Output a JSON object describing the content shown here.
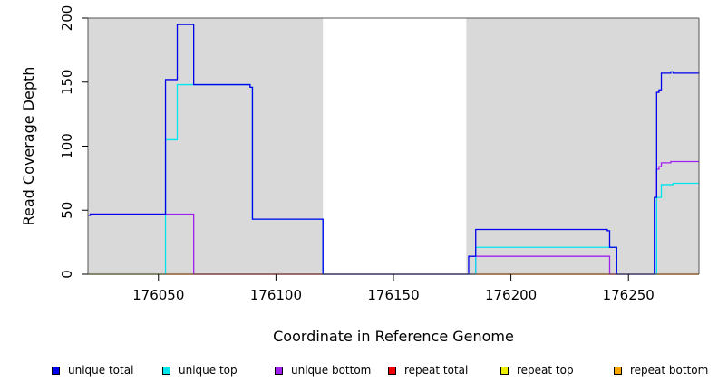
{
  "chart_data": {
    "type": "line",
    "title": "",
    "xlabel": "Coordinate in Reference Genome",
    "ylabel": "Read Coverage Depth",
    "xlim": [
      176020,
      176280
    ],
    "ylim": [
      0,
      200
    ],
    "x_ticks": [
      176050,
      176100,
      176150,
      176200,
      176250
    ],
    "y_ticks": [
      0,
      50,
      100,
      150,
      200
    ],
    "shaded_regions": [
      {
        "x0": 176020,
        "x1": 176120,
        "color": "#d9d9d9"
      },
      {
        "x0": 176181,
        "x1": 176280,
        "color": "#d9d9d9"
      }
    ],
    "series": [
      {
        "name": "unique total",
        "color": "#0000ee",
        "x": [
          176020,
          176021,
          176053,
          176058,
          176065,
          176089,
          176090,
          176120,
          176182,
          176185,
          176241,
          176242,
          176245,
          176261,
          176262,
          176263,
          176264,
          176268,
          176269,
          176280
        ],
        "y": [
          46,
          47,
          152,
          195,
          148,
          146,
          43,
          0,
          14,
          35,
          34,
          21,
          0,
          60,
          142,
          144,
          157,
          158,
          157,
          158
        ]
      },
      {
        "name": "unique top",
        "color": "#00e5ee",
        "x": [
          176020,
          176053,
          176058,
          176065,
          176089,
          176090,
          176120,
          176182,
          176185,
          176241,
          176242,
          176245,
          176261,
          176262,
          176263,
          176264,
          176268,
          176269,
          176280
        ],
        "y": [
          0,
          105,
          148,
          148,
          146,
          43,
          0,
          0,
          21,
          21,
          21,
          0,
          0,
          60,
          60,
          70,
          70,
          71,
          71
        ]
      },
      {
        "name": "unique bottom",
        "color": "#a020f0",
        "x": [
          176020,
          176021,
          176065,
          176182,
          176185,
          176241,
          176242,
          176261,
          176262,
          176263,
          176264,
          176268,
          176280
        ],
        "y": [
          46,
          47,
          0,
          0,
          14,
          14,
          0,
          0,
          82,
          84,
          87,
          88,
          88
        ]
      },
      {
        "name": "repeat total",
        "color": "#ee0000",
        "x": [
          176020,
          176280
        ],
        "y": [
          0,
          0
        ]
      },
      {
        "name": "repeat top",
        "color": "#eeee00",
        "x": [
          176020,
          176280
        ],
        "y": [
          0,
          0
        ]
      },
      {
        "name": "repeat bottom",
        "color": "#ffa500",
        "x": [
          176020,
          176280
        ],
        "y": [
          0,
          0
        ]
      }
    ],
    "legend_placement": "bottom",
    "grid": false
  }
}
